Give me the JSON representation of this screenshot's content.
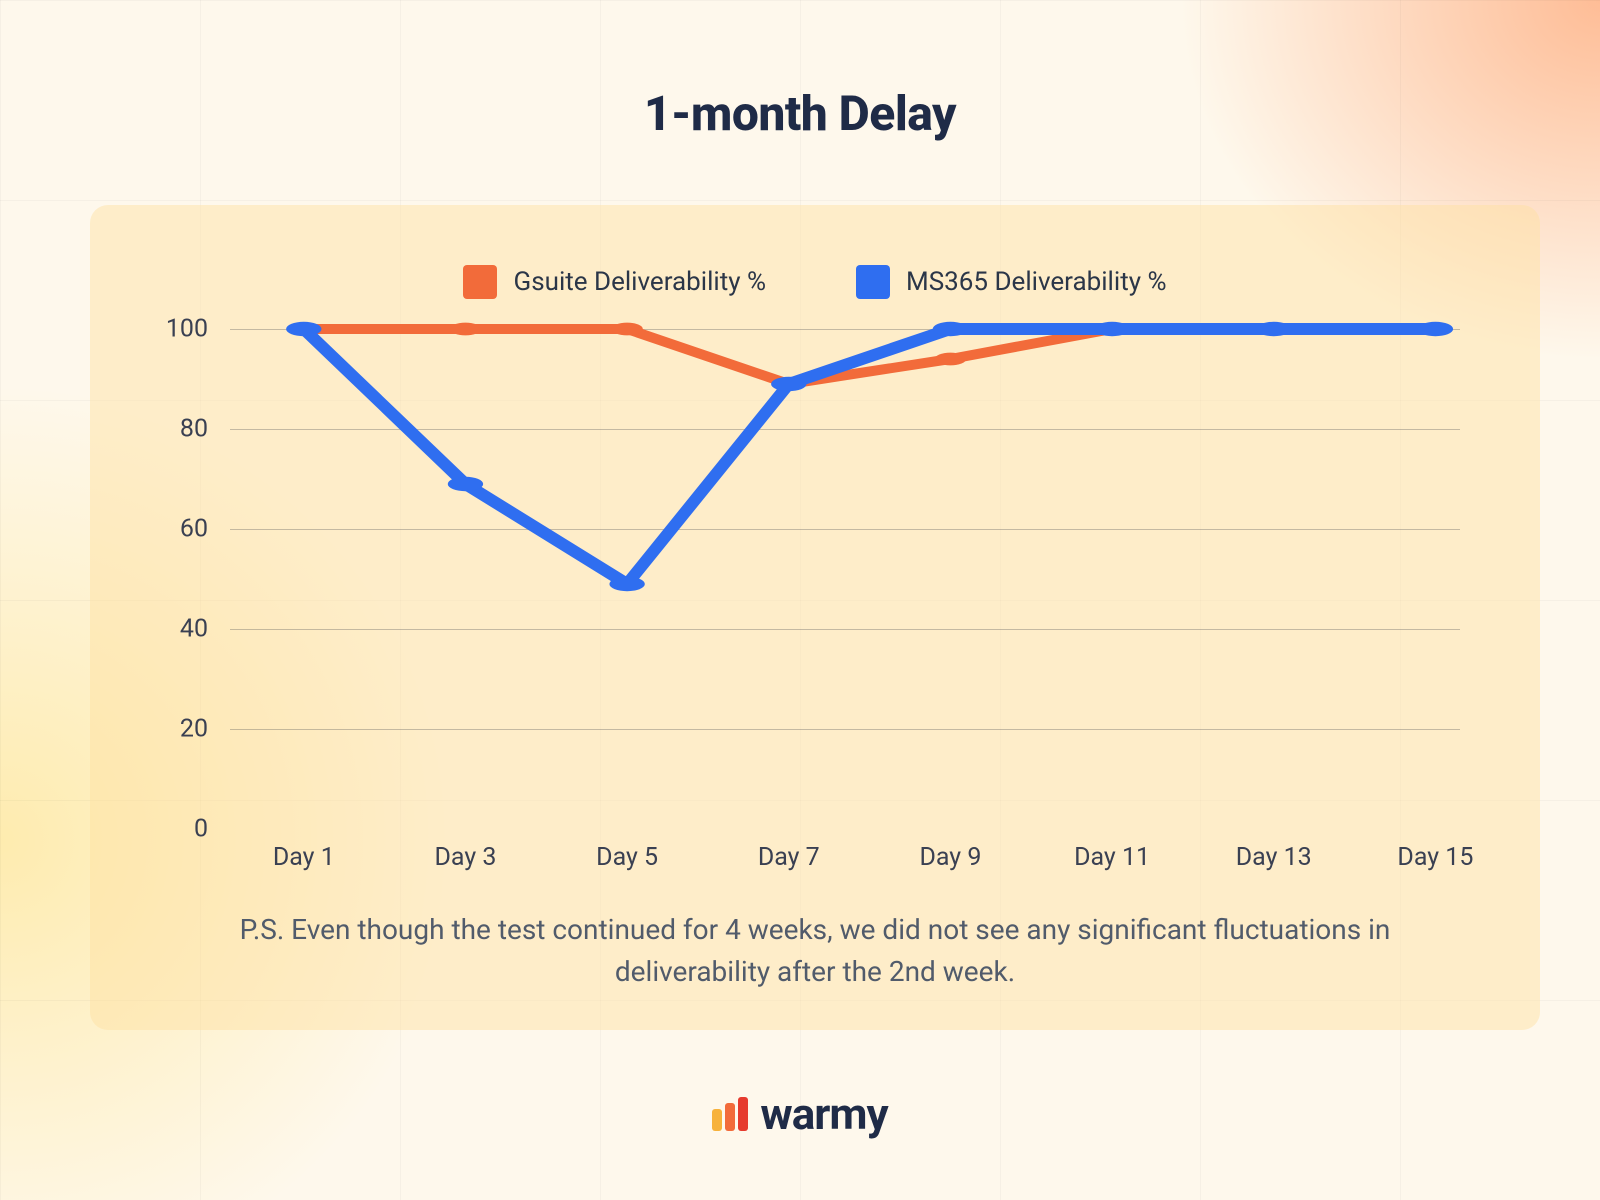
{
  "title": "1-month Delay",
  "chart": {
    "type": "line",
    "legend": [
      {
        "label": "Gsuite Deliverability %",
        "color": "#f26b3a"
      },
      {
        "label": "MS365 Deliverability %",
        "color": "#2f6ef0"
      }
    ],
    "x_categories": [
      "Day 1",
      "Day 3",
      "Day 5",
      "Day 7",
      "Day 9",
      "Day 11",
      "Day 13",
      "Day 15"
    ],
    "series": [
      {
        "name": "Gsuite",
        "color": "#f26b3a",
        "line_width": 5,
        "marker_radius": 8,
        "values": [
          100,
          100,
          100,
          89,
          94,
          100,
          100,
          100
        ]
      },
      {
        "name": "MS365",
        "color": "#2f6ef0",
        "line_width": 6,
        "marker_radius": 9,
        "values": [
          100,
          69,
          49,
          89,
          100,
          100,
          100,
          100
        ]
      }
    ],
    "ylim": [
      0,
      100
    ],
    "ytick_step": 20,
    "grid_color": "rgba(90,90,90,0.35)",
    "axis_label_fontsize": 25,
    "axis_label_color": "#3a4052",
    "legend_fontsize": 26,
    "card_background": "rgba(255,224,160,0.45)"
  },
  "footnote": "P.S. Even though the test continued for 4 weeks, we did not see any significant fluctuations in deliverability after the 2nd week.",
  "brand": {
    "name": "warmy",
    "bars": [
      {
        "color": "#f7b23b",
        "height": 22
      },
      {
        "color": "#f26b3a",
        "height": 28
      },
      {
        "color": "#e63b2e",
        "height": 34
      }
    ],
    "text_color": "#1f2b47"
  }
}
